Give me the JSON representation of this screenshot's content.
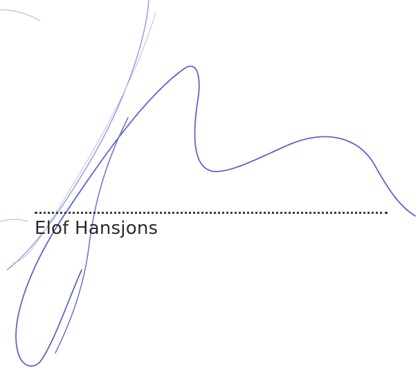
{
  "signature": {
    "signer_name": "Elof Hansjons",
    "ink_color": "#5b63c9",
    "ink_color_light": "#8f95dd"
  }
}
